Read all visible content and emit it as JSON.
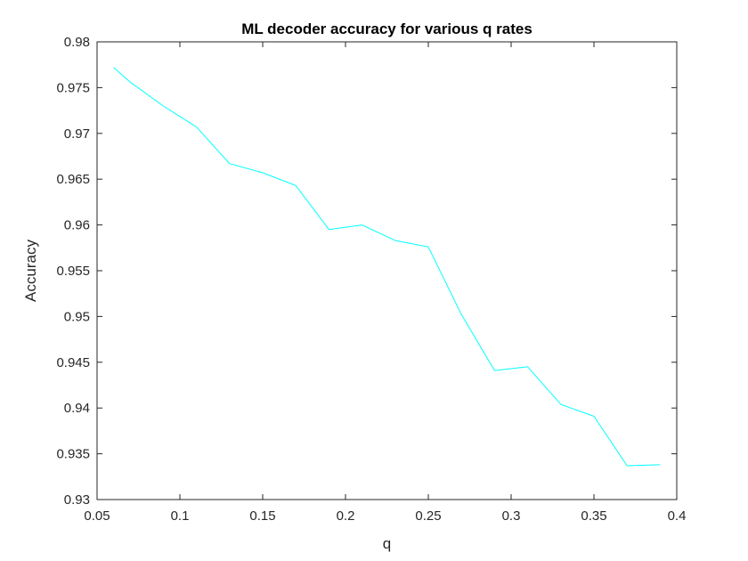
{
  "chart_data": {
    "type": "line",
    "title": "ML decoder accuracy for various q rates",
    "xlabel": "q",
    "ylabel": "Accuracy",
    "xlim": [
      0.05,
      0.4
    ],
    "ylim": [
      0.93,
      0.98
    ],
    "xticks": [
      0.05,
      0.1,
      0.15,
      0.2,
      0.25,
      0.3,
      0.35,
      0.4
    ],
    "yticks": [
      0.93,
      0.935,
      0.94,
      0.945,
      0.95,
      0.955,
      0.96,
      0.965,
      0.97,
      0.975,
      0.98
    ],
    "xtick_labels": [
      "0.05",
      "0.1",
      "0.15",
      "0.2",
      "0.25",
      "0.3",
      "0.35",
      "0.4"
    ],
    "ytick_labels": [
      "0.93",
      "0.935",
      "0.94",
      "0.945",
      "0.95",
      "0.955",
      "0.96",
      "0.965",
      "0.97",
      "0.975",
      "0.98"
    ],
    "grid": false,
    "line_color": "#00ffff",
    "series": [
      {
        "x": [
          0.06,
          0.07,
          0.09,
          0.11,
          0.13,
          0.15,
          0.17,
          0.19,
          0.21,
          0.23,
          0.25,
          0.27,
          0.29,
          0.31,
          0.33,
          0.35,
          0.37,
          0.39
        ],
        "values": [
          0.9772,
          0.9756,
          0.973,
          0.9707,
          0.9667,
          0.9657,
          0.9643,
          0.9595,
          0.96,
          0.9583,
          0.9576,
          0.9502,
          0.9441,
          0.9445,
          0.9404,
          0.9391,
          0.9337,
          0.9338
        ]
      }
    ]
  }
}
